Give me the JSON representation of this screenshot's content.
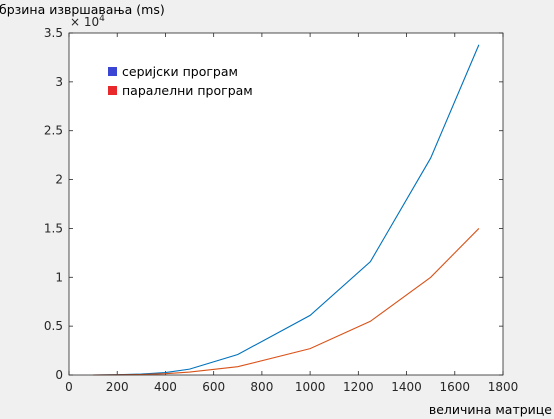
{
  "chart_data": {
    "type": "line",
    "ylabel": "брзина извршавања (ms)",
    "xlabel": "величина матрице",
    "exponent_label": "× 10",
    "exponent_power": "4",
    "xlim": [
      0,
      1800
    ],
    "ylim": [
      0,
      35000
    ],
    "x_ticks": [
      0,
      200,
      400,
      600,
      800,
      1000,
      1200,
      1400,
      1600,
      1800
    ],
    "y_ticks": [
      0,
      5000,
      10000,
      15000,
      20000,
      25000,
      30000,
      35000
    ],
    "y_tick_labels": [
      "0",
      "0.5",
      "1",
      "1.5",
      "2",
      "2.5",
      "3",
      "3.5"
    ],
    "grid": false,
    "legend_position": "top-left",
    "series": [
      {
        "name": "серијски програм",
        "color": "#0072bd",
        "legend_color": "#3b45d3",
        "x": [
          100,
          200,
          300,
          400,
          500,
          700,
          1000,
          1250,
          1500,
          1700
        ],
        "y": [
          0,
          30,
          100,
          250,
          600,
          2100,
          6100,
          11600,
          22200,
          33800
        ]
      },
      {
        "name": "паралелни програм",
        "color": "#d95319",
        "legend_color": "#e8282a",
        "x": [
          100,
          200,
          300,
          400,
          500,
          700,
          1000,
          1250,
          1500,
          1700
        ],
        "y": [
          0,
          15,
          50,
          130,
          300,
          850,
          2700,
          5500,
          10000,
          15000
        ]
      }
    ]
  }
}
